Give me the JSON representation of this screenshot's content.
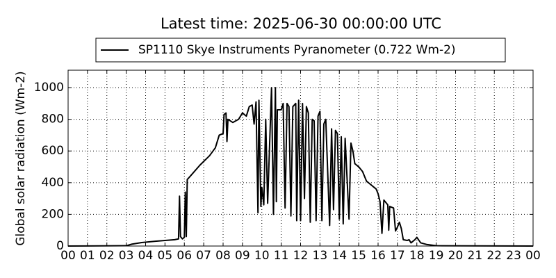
{
  "chart_data": {
    "type": "line",
    "title": "Latest time: 2025-06-30 00:00:00 UTC",
    "y_label": "Global solar radiation (Wm-2)",
    "xlim": [
      0,
      24
    ],
    "xticks": [
      {
        "value": 0,
        "label": "00"
      },
      {
        "value": 1,
        "label": "01"
      },
      {
        "value": 2,
        "label": "02"
      },
      {
        "value": 3,
        "label": "03"
      },
      {
        "value": 4,
        "label": "04"
      },
      {
        "value": 5,
        "label": "05"
      },
      {
        "value": 6,
        "label": "06"
      },
      {
        "value": 7,
        "label": "07"
      },
      {
        "value": 8,
        "label": "08"
      },
      {
        "value": 9,
        "label": "09"
      },
      {
        "value": 10,
        "label": "10"
      },
      {
        "value": 11,
        "label": "11"
      },
      {
        "value": 12,
        "label": "12"
      },
      {
        "value": 13,
        "label": "13"
      },
      {
        "value": 14,
        "label": "14"
      },
      {
        "value": 15,
        "label": "15"
      },
      {
        "value": 16,
        "label": "16"
      },
      {
        "value": 17,
        "label": "17"
      },
      {
        "value": 18,
        "label": "18"
      },
      {
        "value": 19,
        "label": "19"
      },
      {
        "value": 20,
        "label": "20"
      },
      {
        "value": 21,
        "label": "21"
      },
      {
        "value": 22,
        "label": "22"
      },
      {
        "value": 23,
        "label": "23"
      },
      {
        "value": 24,
        "label": "00"
      }
    ],
    "ylim": [
      0,
      1110
    ],
    "yticks": [
      0,
      200,
      400,
      600,
      800,
      1000
    ],
    "grid": true,
    "legend": "top",
    "x": [
      0,
      3,
      3.3,
      3.8,
      4.5,
      5,
      5.5,
      5.7,
      5.75,
      5.8,
      5.9,
      6,
      6.05,
      6.1,
      6.15,
      6.3,
      6.8,
      7.3,
      7.6,
      7.8,
      8,
      8.05,
      8.15,
      8.2,
      8.25,
      8.5,
      8.8,
      9,
      9.2,
      9.35,
      9.5,
      9.6,
      9.7,
      9.8,
      9.85,
      9.95,
      10,
      10.1,
      10.2,
      10.3,
      10.5,
      10.6,
      10.7,
      10.75,
      10.8,
      11,
      11.1,
      11.2,
      11.3,
      11.4,
      11.5,
      11.6,
      11.75,
      11.8,
      11.9,
      12,
      12.1,
      12.2,
      12.3,
      12.4,
      12.5,
      12.6,
      12.7,
      12.8,
      12.9,
      13,
      13.1,
      13.2,
      13.3,
      13.5,
      13.6,
      13.7,
      13.8,
      13.9,
      14,
      14.1,
      14.2,
      14.3,
      14.5,
      14.6,
      14.7,
      14.8,
      15,
      15.2,
      15.4,
      15.6,
      15.8,
      15.9,
      16,
      16.1,
      16.2,
      16.3,
      16.5,
      16.55,
      16.6,
      16.8,
      16.9,
      17,
      17.1,
      17.2,
      17.3,
      17.5,
      17.6,
      17.7,
      17.9,
      18,
      18.2,
      18.5,
      19,
      24
    ],
    "series": [
      {
        "name": "SP1110 Skye Instruments Pyranometer (0.722 Wm-2)",
        "color": "#000000",
        "values": [
          0,
          2,
          12,
          22,
          30,
          35,
          40,
          45,
          315,
          60,
          45,
          55,
          340,
          60,
          420,
          440,
          510,
          570,
          620,
          700,
          710,
          830,
          840,
          660,
          800,
          780,
          800,
          840,
          820,
          880,
          890,
          770,
          910,
          210,
          920,
          250,
          370,
          260,
          800,
          270,
          1000,
          200,
          1000,
          280,
          860,
          860,
          900,
          240,
          900,
          880,
          190,
          880,
          900,
          160,
          920,
          160,
          900,
          300,
          880,
          840,
          150,
          800,
          790,
          160,
          820,
          850,
          160,
          770,
          800,
          130,
          740,
          230,
          730,
          710,
          170,
          690,
          140,
          680,
          170,
          650,
          600,
          520,
          500,
          470,
          410,
          390,
          370,
          360,
          330,
          280,
          80,
          290,
          260,
          100,
          250,
          240,
          95,
          120,
          150,
          110,
          40,
          35,
          40,
          20,
          40,
          55,
          20,
          10,
          2,
          0
        ]
      }
    ]
  }
}
